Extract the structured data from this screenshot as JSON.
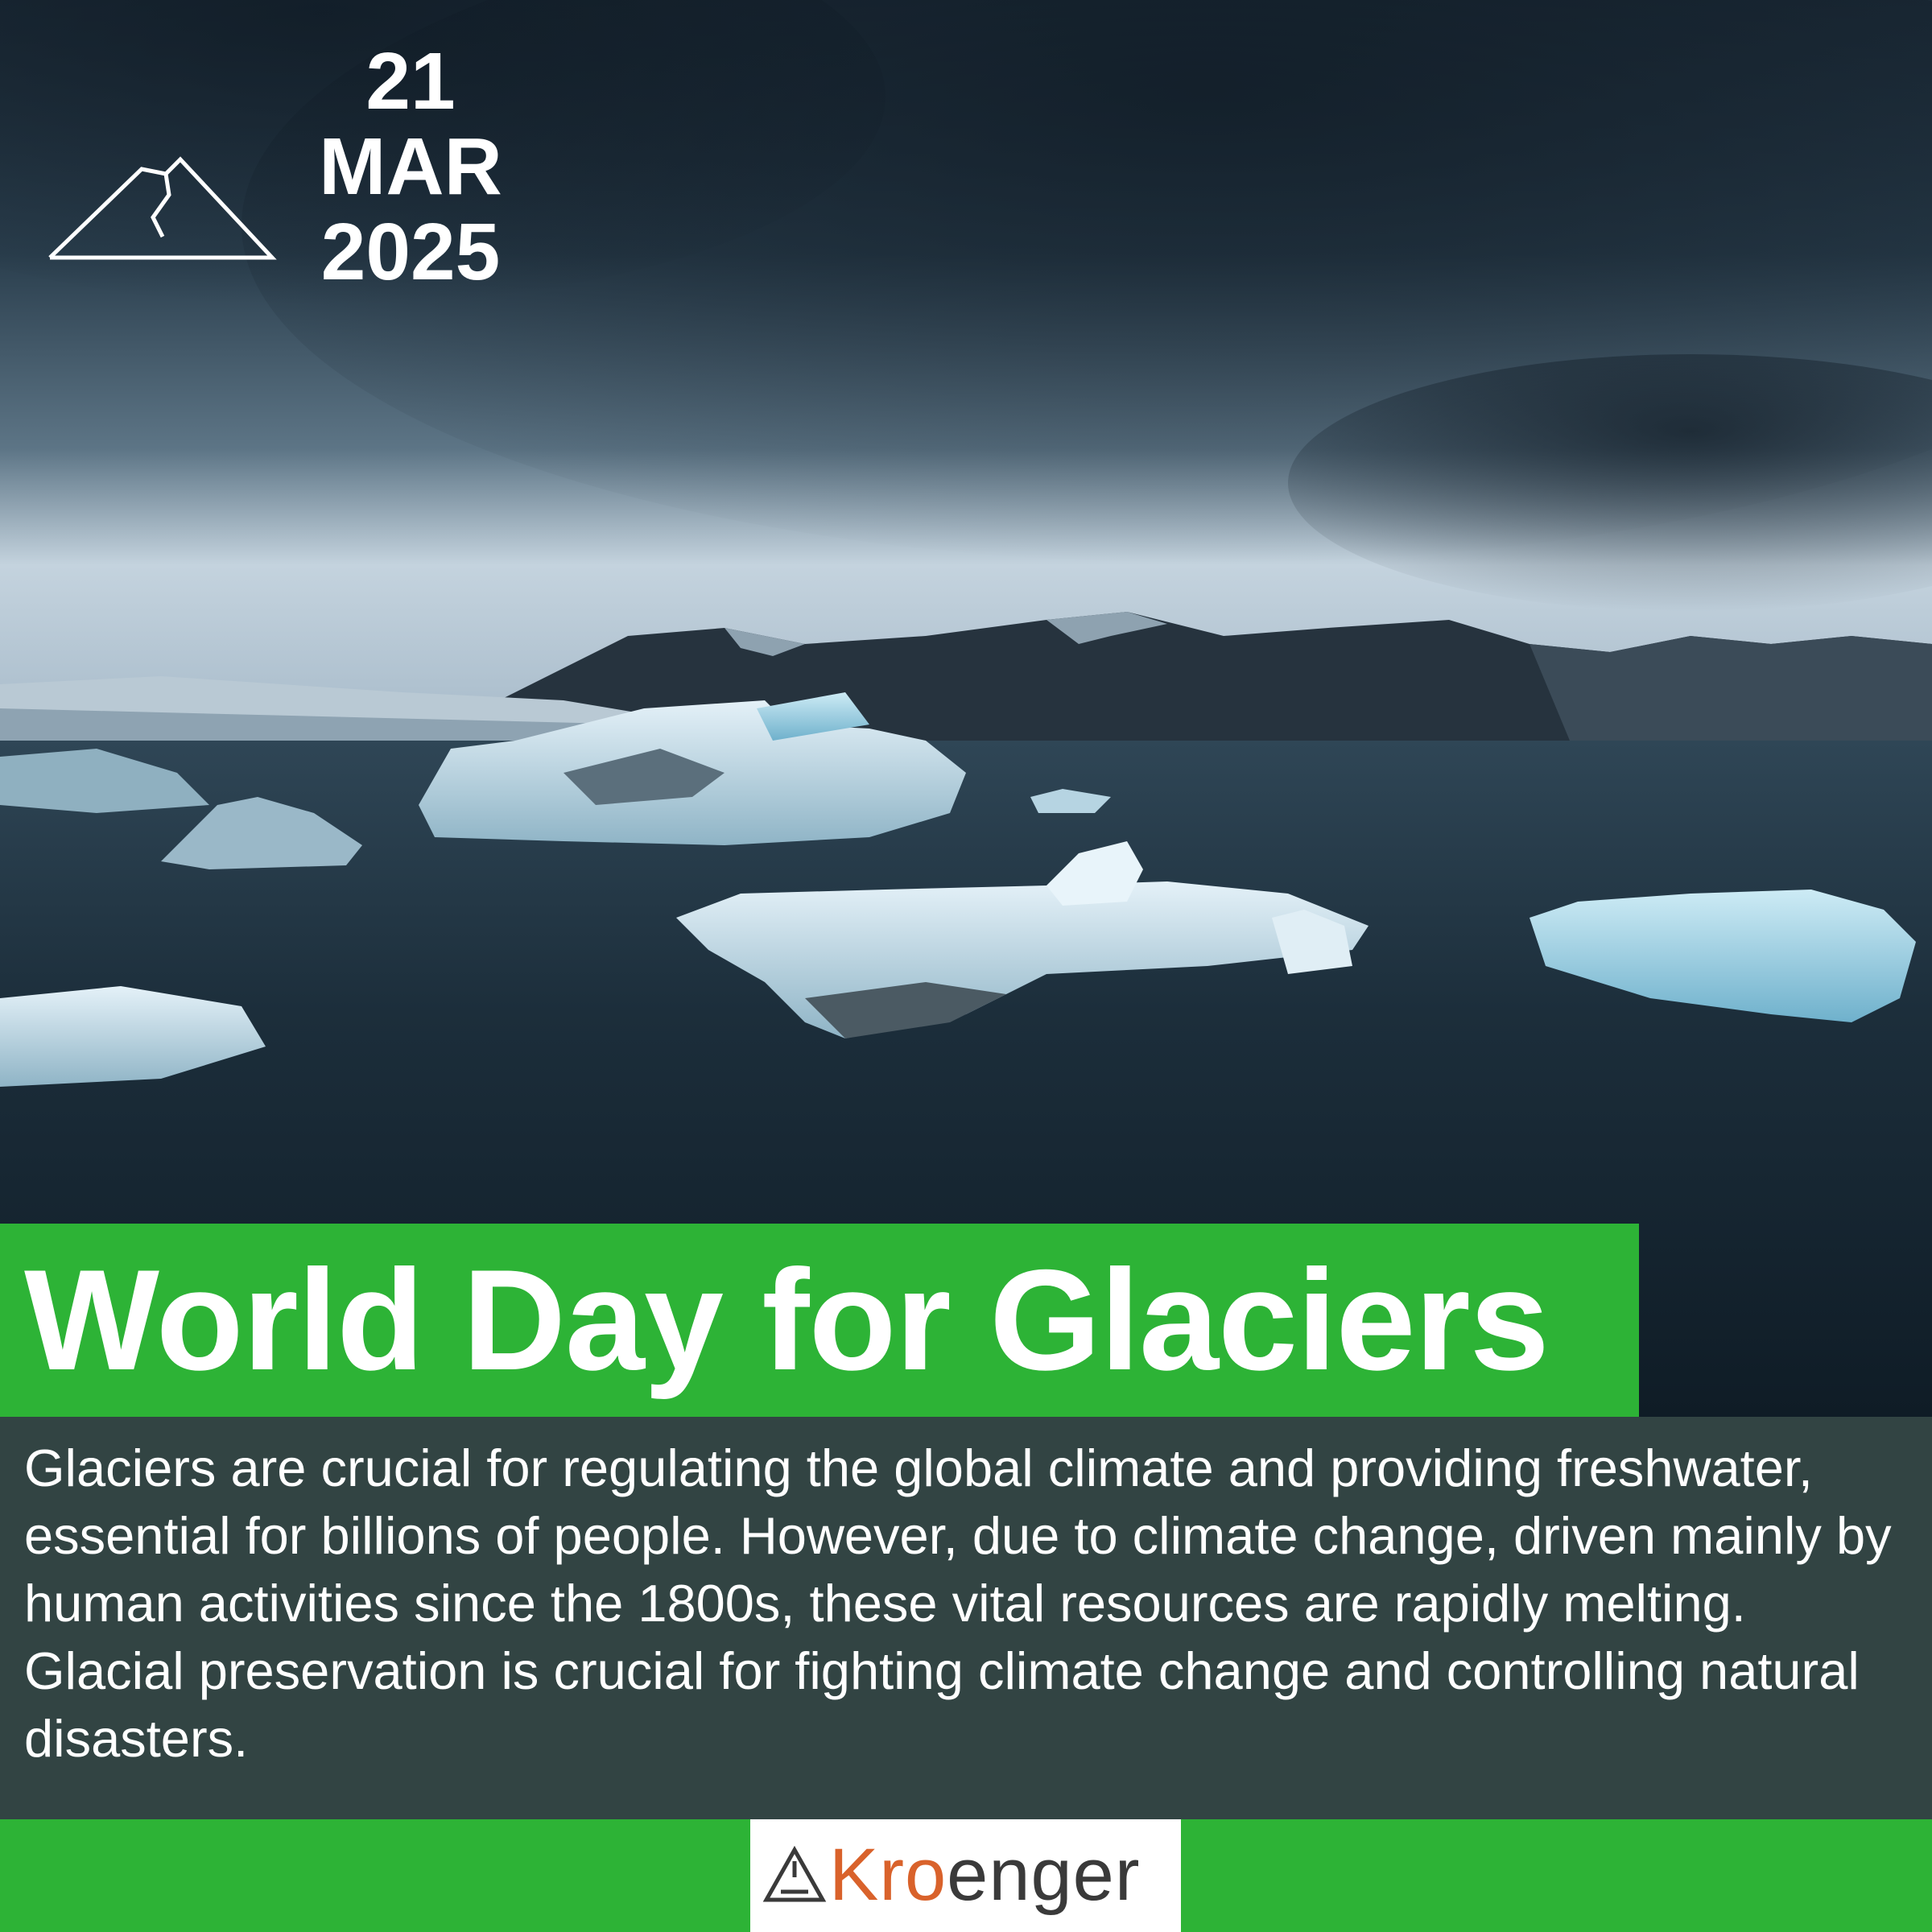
{
  "date": {
    "day": "21",
    "month": "MAR",
    "year": "2025"
  },
  "title": "World Day for Glaciers",
  "description": "Glaciers are crucial for regulating the global climate and providing freshwater, essential for billions of people. However, due to climate change, driven mainly by human activities since the 1800s, these vital resources are rapidly melting. Glacial preservation is crucial for fighting climate change and controlling natural disasters.",
  "brand": {
    "name_part1": "Kro",
    "name_part2": "enger"
  },
  "icons": {
    "top_logo": "mountain-icon",
    "brand_logo": "recycle-triangle-icon"
  },
  "colors": {
    "accent_green": "#2db336",
    "text_panel": "#324443",
    "brand_orange": "#d9622b",
    "brand_dark": "#3a3a3a"
  }
}
